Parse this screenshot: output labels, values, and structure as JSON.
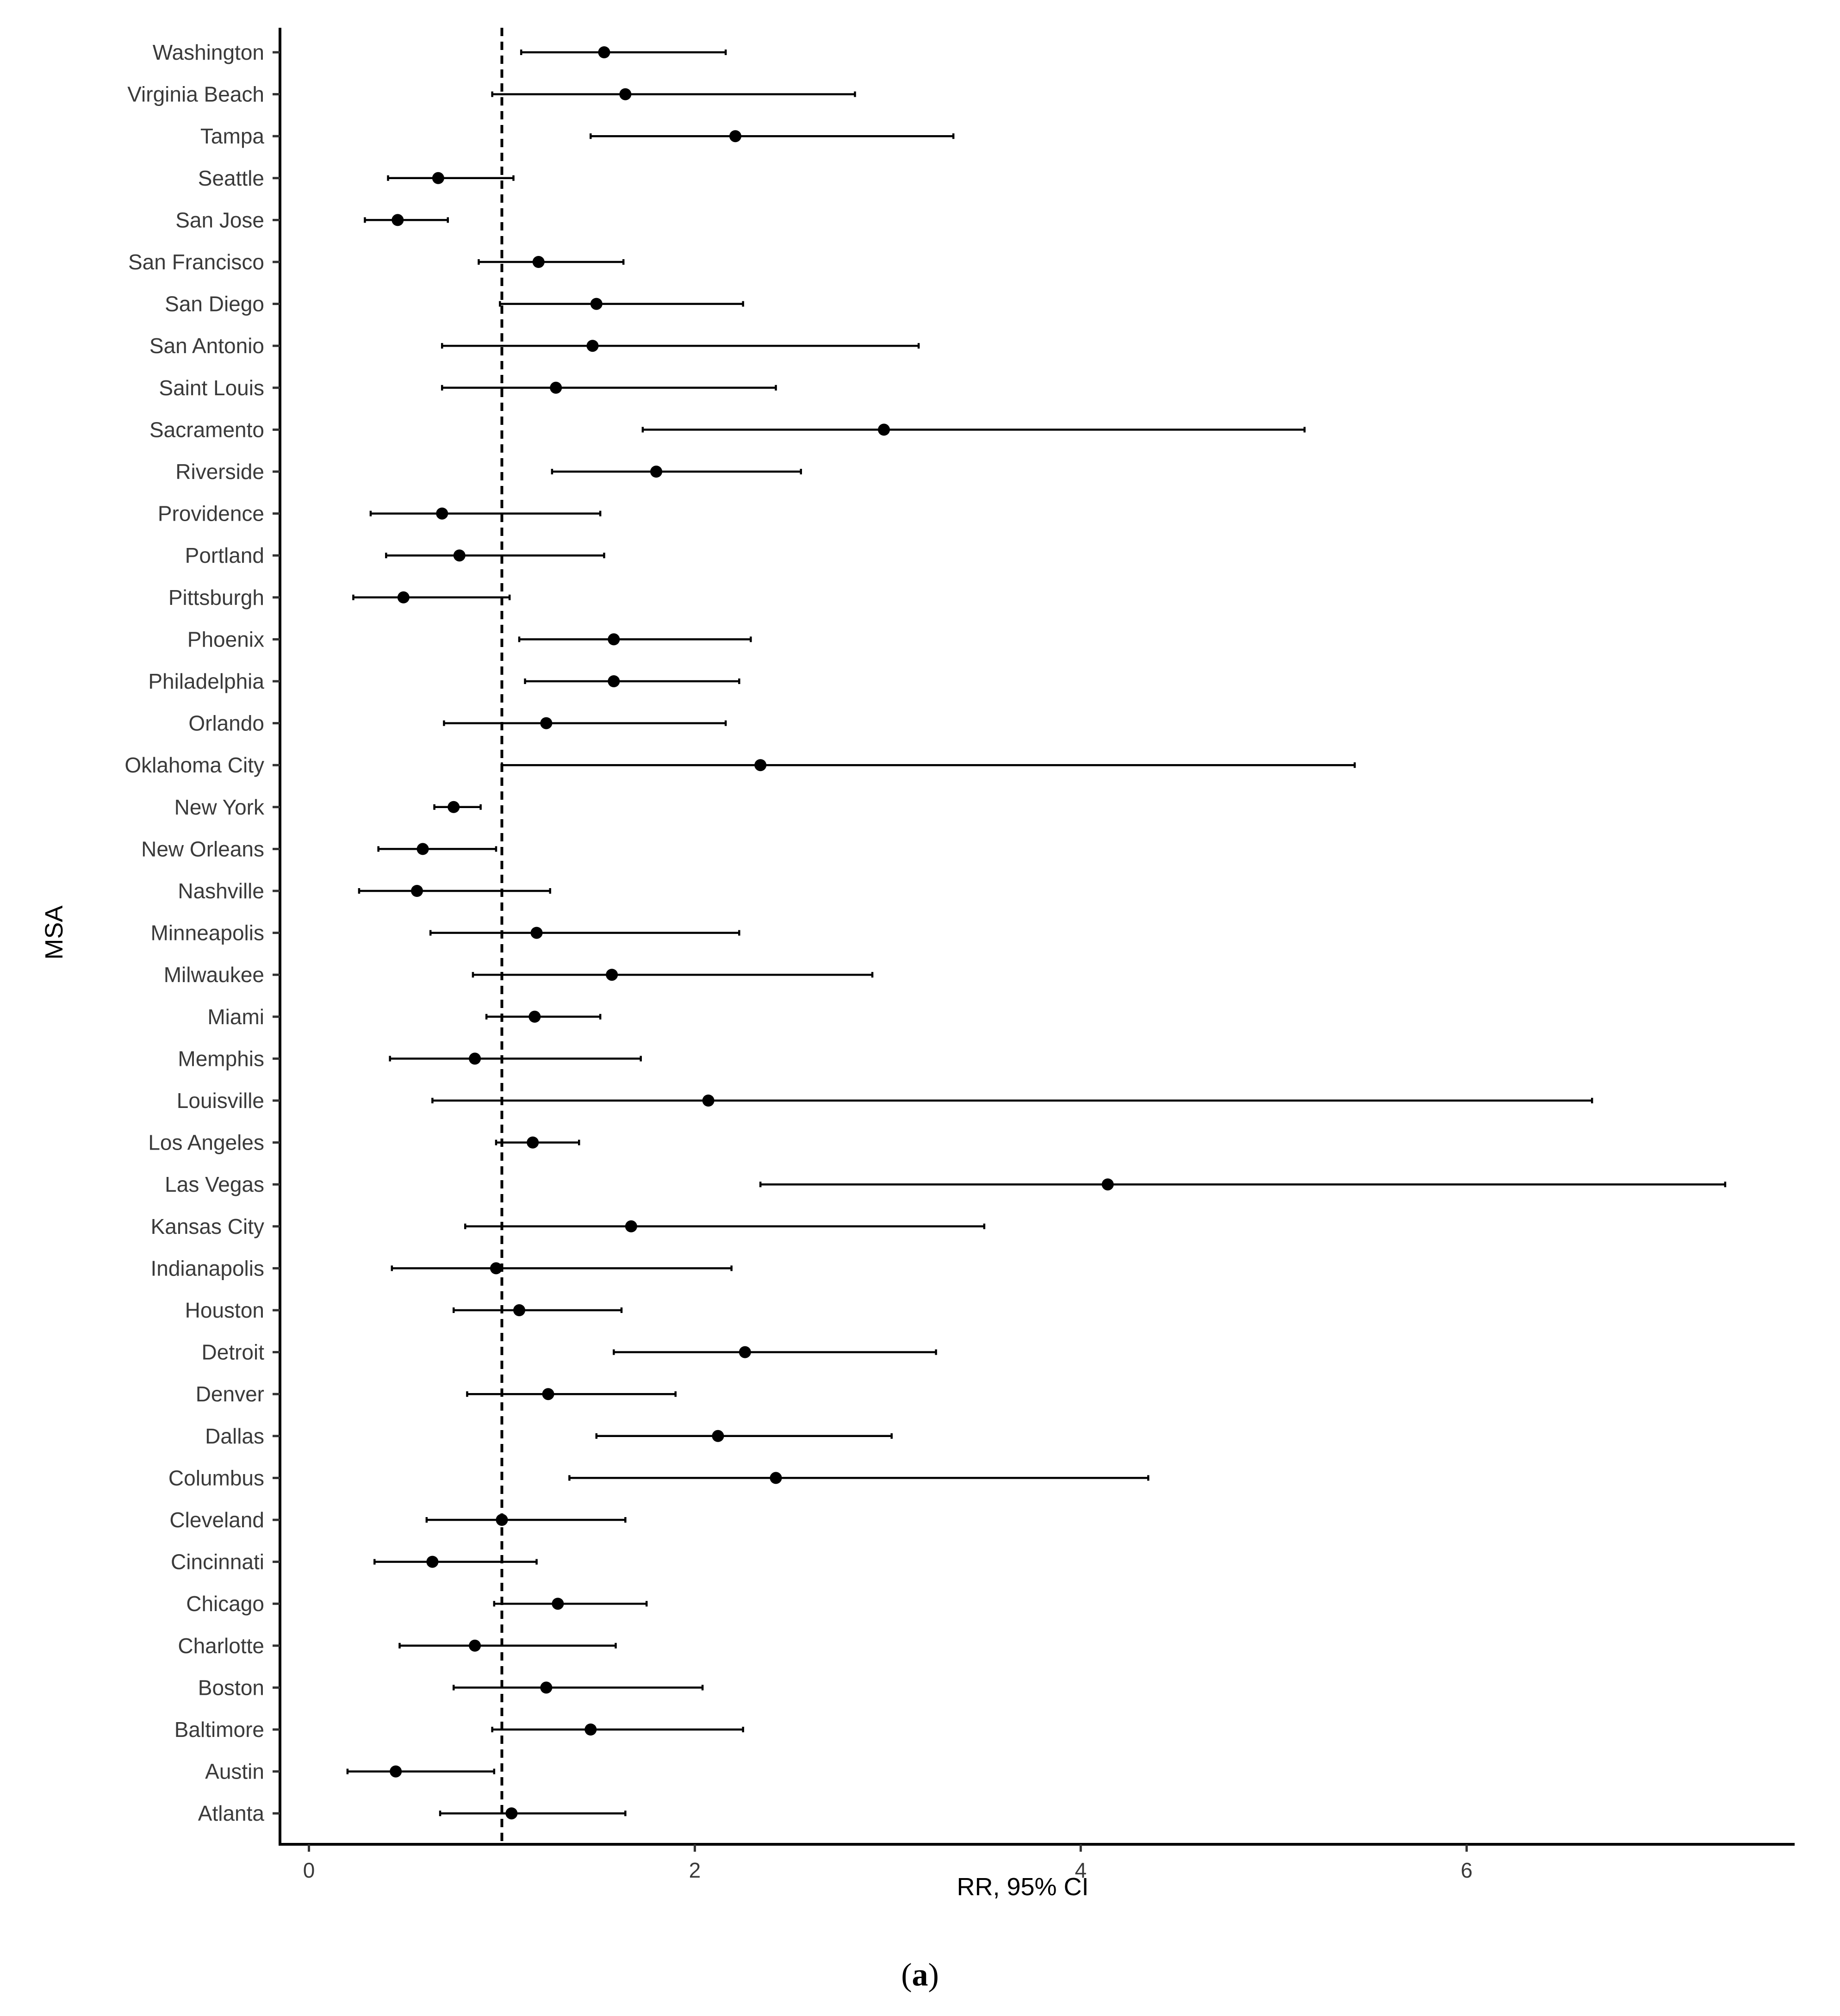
{
  "chart_data": {
    "type": "forest",
    "title": "",
    "xlabel": "RR, 95% CI",
    "ylabel": "MSA",
    "caption_open": "(",
    "caption_letter": "a",
    "caption_close": ")",
    "xlim": [
      -0.15,
      7.7
    ],
    "x_ticks": [
      0,
      2,
      4,
      6
    ],
    "reference_line": 1,
    "grid": false,
    "categories": [
      "Washington",
      "Virginia Beach",
      "Tampa",
      "Seattle",
      "San Jose",
      "San Francisco",
      "San Diego",
      "San Antonio",
      "Saint Louis",
      "Sacramento",
      "Riverside",
      "Providence",
      "Portland",
      "Pittsburgh",
      "Phoenix",
      "Philadelphia",
      "Orlando",
      "Oklahoma City",
      "New York",
      "New Orleans",
      "Nashville",
      "Minneapolis",
      "Milwaukee",
      "Miami",
      "Memphis",
      "Louisville",
      "Los Angeles",
      "Las Vegas",
      "Kansas City",
      "Indianapolis",
      "Houston",
      "Detroit",
      "Denver",
      "Dallas",
      "Columbus",
      "Cleveland",
      "Cincinnati",
      "Chicago",
      "Charlotte",
      "Boston",
      "Baltimore",
      "Austin",
      "Atlanta"
    ],
    "estimates": [
      1.53,
      1.64,
      2.21,
      0.67,
      0.46,
      1.19,
      1.49,
      1.47,
      1.28,
      2.98,
      1.8,
      0.69,
      0.78,
      0.49,
      1.58,
      1.58,
      1.23,
      2.34,
      0.75,
      0.59,
      0.56,
      1.18,
      1.57,
      1.17,
      0.86,
      2.07,
      1.16,
      4.14,
      1.67,
      0.97,
      1.09,
      2.26,
      1.24,
      2.12,
      2.42,
      1.0,
      0.64,
      1.29,
      0.86,
      1.23,
      1.46,
      0.45,
      1.05
    ],
    "lower": [
      1.1,
      0.95,
      1.46,
      0.41,
      0.29,
      0.88,
      0.99,
      0.69,
      0.69,
      1.73,
      1.26,
      0.32,
      0.4,
      0.23,
      1.09,
      1.12,
      0.7,
      1.0,
      0.65,
      0.36,
      0.26,
      0.63,
      0.85,
      0.92,
      0.42,
      0.64,
      0.97,
      2.34,
      0.81,
      0.43,
      0.75,
      1.58,
      0.82,
      1.49,
      1.35,
      0.61,
      0.34,
      0.96,
      0.47,
      0.75,
      0.95,
      0.2,
      0.68
    ],
    "upper": [
      2.16,
      2.83,
      3.34,
      1.06,
      0.72,
      1.63,
      2.25,
      3.16,
      2.42,
      5.16,
      2.55,
      1.51,
      1.53,
      1.04,
      2.29,
      2.23,
      2.16,
      5.42,
      0.89,
      0.97,
      1.25,
      2.23,
      2.92,
      1.51,
      1.72,
      6.65,
      1.4,
      7.34,
      3.5,
      2.19,
      1.62,
      3.25,
      1.9,
      3.02,
      4.35,
      1.64,
      1.18,
      1.75,
      1.59,
      2.04,
      2.25,
      0.96,
      1.64
    ]
  }
}
